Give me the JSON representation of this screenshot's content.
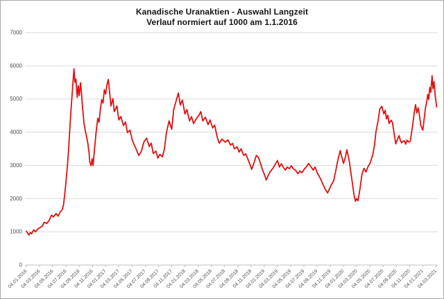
{
  "title": {
    "line1": "Kanadische Uranaktien - Auswahl Langzeit",
    "line2": "Verlauf normiert auf 1000 am 1.1.2016"
  },
  "colors": {
    "series": "#e10e0e",
    "grid": "#d9d9d9",
    "axis": "#bfbfbf",
    "tick_labels": "#4d4d4d",
    "frame_border": "#a6a6a6",
    "background": "#ffffff"
  },
  "chart_data": {
    "type": "line",
    "title": "Kanadische Uranaktien - Auswahl Langzeit",
    "subtitle": "Verlauf normiert auf 1000 am 1.1.2016",
    "legend": "none",
    "grid": "horizontal-only",
    "ylim": [
      0,
      7000
    ],
    "y_ticks": [
      0,
      1000,
      2000,
      3000,
      4000,
      5000,
      6000,
      7000
    ],
    "x_tick_interval_months": 2,
    "x_encoding": "points are [months since 04.01.2016, index value (1000 = 1.1.2016)]",
    "x_tick_labels": [
      "04.01.2016",
      "04.03.2016",
      "04.05.2016",
      "04.07.2016",
      "04.09.2016",
      "04.11.2016",
      "04.01.2017",
      "04.03.2017",
      "04.05.2017",
      "04.07.2017",
      "04.09.2017",
      "04.11.2017",
      "04.01.2018",
      "04.03.2018",
      "04.05.2018",
      "04.07.2018",
      "04.09.2018",
      "04.11.2018",
      "04.01.2019",
      "04.03.2019",
      "04.05.2019",
      "04.07.2019",
      "04.09.2019",
      "04.11.2019",
      "04.01.2020",
      "04.03.2020",
      "04.05.2020",
      "04.07.2020",
      "04.09.2020",
      "04.11.2020",
      "04.01.2021",
      "04.03.2021"
    ],
    "series": [
      {
        "name": "Kanadische Uranaktien (normiert, 1000 am 1.1.2016)",
        "color": "#e10e0e",
        "points": [
          [
            0,
            1020
          ],
          [
            0.2,
            960
          ],
          [
            0.4,
            900
          ],
          [
            0.6,
            980
          ],
          [
            0.8,
            940
          ],
          [
            1.1,
            1060
          ],
          [
            1.4,
            1000
          ],
          [
            1.7,
            1080
          ],
          [
            2,
            1120
          ],
          [
            2.4,
            1170
          ],
          [
            2.7,
            1290
          ],
          [
            3.1,
            1250
          ],
          [
            3.5,
            1360
          ],
          [
            3.8,
            1500
          ],
          [
            4.1,
            1450
          ],
          [
            4.5,
            1550
          ],
          [
            4.8,
            1470
          ],
          [
            5.1,
            1590
          ],
          [
            5.4,
            1660
          ],
          [
            5.6,
            1780
          ],
          [
            5.8,
            2100
          ],
          [
            6,
            2500
          ],
          [
            6.2,
            2950
          ],
          [
            6.4,
            3500
          ],
          [
            6.6,
            4200
          ],
          [
            6.8,
            4800
          ],
          [
            7,
            5350
          ],
          [
            7.2,
            5910
          ],
          [
            7.35,
            5500
          ],
          [
            7.5,
            5600
          ],
          [
            7.7,
            5050
          ],
          [
            7.85,
            5400
          ],
          [
            8,
            5100
          ],
          [
            8.2,
            5490
          ],
          [
            8.35,
            5150
          ],
          [
            8.5,
            4750
          ],
          [
            8.7,
            4300
          ],
          [
            8.9,
            4050
          ],
          [
            9.1,
            3880
          ],
          [
            9.3,
            3670
          ],
          [
            9.5,
            3350
          ],
          [
            9.6,
            3100
          ],
          [
            9.8,
            2990
          ],
          [
            9.95,
            3200
          ],
          [
            10.1,
            3000
          ],
          [
            10.3,
            3460
          ],
          [
            10.5,
            3890
          ],
          [
            10.65,
            4150
          ],
          [
            10.8,
            4420
          ],
          [
            11,
            4300
          ],
          [
            11.2,
            4700
          ],
          [
            11.4,
            4980
          ],
          [
            11.6,
            4880
          ],
          [
            11.8,
            5280
          ],
          [
            12,
            5150
          ],
          [
            12.2,
            5430
          ],
          [
            12.4,
            5590
          ],
          [
            12.6,
            5200
          ],
          [
            12.8,
            4790
          ],
          [
            13.1,
            5010
          ],
          [
            13.3,
            4620
          ],
          [
            13.7,
            4790
          ],
          [
            14,
            4370
          ],
          [
            14.3,
            4470
          ],
          [
            14.7,
            4200
          ],
          [
            15,
            4310
          ],
          [
            15.3,
            3990
          ],
          [
            15.7,
            4060
          ],
          [
            16,
            3780
          ],
          [
            16.3,
            3630
          ],
          [
            16.7,
            3450
          ],
          [
            17,
            3300
          ],
          [
            17.4,
            3420
          ],
          [
            17.8,
            3710
          ],
          [
            18.2,
            3820
          ],
          [
            18.6,
            3570
          ],
          [
            18.9,
            3670
          ],
          [
            19.2,
            3360
          ],
          [
            19.6,
            3430
          ],
          [
            19.9,
            3220
          ],
          [
            20.2,
            3330
          ],
          [
            20.6,
            3260
          ],
          [
            20.9,
            3510
          ],
          [
            21.2,
            3990
          ],
          [
            21.6,
            4340
          ],
          [
            22,
            4090
          ],
          [
            22.3,
            4680
          ],
          [
            22.7,
            4970
          ],
          [
            23,
            5180
          ],
          [
            23.3,
            4820
          ],
          [
            23.6,
            4970
          ],
          [
            24,
            4550
          ],
          [
            24.3,
            4680
          ],
          [
            24.7,
            4340
          ],
          [
            25,
            4470
          ],
          [
            25.3,
            4260
          ],
          [
            25.7,
            4400
          ],
          [
            26.1,
            4510
          ],
          [
            26.4,
            4620
          ],
          [
            26.7,
            4340
          ],
          [
            27.1,
            4450
          ],
          [
            27.5,
            4230
          ],
          [
            27.8,
            4370
          ],
          [
            28.2,
            4130
          ],
          [
            28.5,
            4210
          ],
          [
            28.9,
            3840
          ],
          [
            29.2,
            3670
          ],
          [
            29.6,
            3790
          ],
          [
            30.1,
            3700
          ],
          [
            30.5,
            3770
          ],
          [
            30.9,
            3610
          ],
          [
            31.2,
            3660
          ],
          [
            31.5,
            3500
          ],
          [
            31.9,
            3560
          ],
          [
            32.2,
            3400
          ],
          [
            32.5,
            3500
          ],
          [
            32.9,
            3300
          ],
          [
            33.2,
            3350
          ],
          [
            33.5,
            3200
          ],
          [
            33.8,
            3050
          ],
          [
            34.1,
            2880
          ],
          [
            34.5,
            3110
          ],
          [
            34.8,
            3300
          ],
          [
            35.1,
            3250
          ],
          [
            35.4,
            3080
          ],
          [
            35.7,
            2890
          ],
          [
            36,
            2740
          ],
          [
            36.3,
            2560
          ],
          [
            36.6,
            2700
          ],
          [
            36.9,
            2810
          ],
          [
            37.3,
            2910
          ],
          [
            37.6,
            3010
          ],
          [
            38,
            3150
          ],
          [
            38.3,
            2950
          ],
          [
            38.6,
            3050
          ],
          [
            38.9,
            2940
          ],
          [
            39.2,
            2860
          ],
          [
            39.5,
            2950
          ],
          [
            39.8,
            2900
          ],
          [
            40.1,
            2990
          ],
          [
            40.4,
            2900
          ],
          [
            40.8,
            2840
          ],
          [
            41.1,
            2750
          ],
          [
            41.4,
            2830
          ],
          [
            41.7,
            2780
          ],
          [
            42.1,
            2900
          ],
          [
            42.4,
            2960
          ],
          [
            42.7,
            3060
          ],
          [
            43.1,
            2950
          ],
          [
            43.4,
            2860
          ],
          [
            43.7,
            2950
          ],
          [
            44,
            2780
          ],
          [
            44.3,
            2680
          ],
          [
            44.6,
            2560
          ],
          [
            45,
            2380
          ],
          [
            45.3,
            2260
          ],
          [
            45.6,
            2170
          ],
          [
            45.9,
            2310
          ],
          [
            46.2,
            2430
          ],
          [
            46.5,
            2530
          ],
          [
            46.8,
            2810
          ],
          [
            47.1,
            3120
          ],
          [
            47.5,
            3450
          ],
          [
            47.7,
            3280
          ],
          [
            48,
            3060
          ],
          [
            48.3,
            3260
          ],
          [
            48.5,
            3470
          ],
          [
            48.7,
            3300
          ],
          [
            48.9,
            3100
          ],
          [
            49.1,
            2800
          ],
          [
            49.3,
            2530
          ],
          [
            49.6,
            2100
          ],
          [
            49.8,
            1920
          ],
          [
            50,
            2000
          ],
          [
            50.2,
            1940
          ],
          [
            50.5,
            2310
          ],
          [
            50.8,
            2740
          ],
          [
            51.1,
            2910
          ],
          [
            51.4,
            2800
          ],
          [
            51.7,
            2960
          ],
          [
            52,
            3060
          ],
          [
            52.4,
            3300
          ],
          [
            52.7,
            3620
          ],
          [
            52.9,
            4000
          ],
          [
            53.2,
            4310
          ],
          [
            53.5,
            4700
          ],
          [
            53.8,
            4780
          ],
          [
            54.1,
            4550
          ],
          [
            54.3,
            4660
          ],
          [
            54.5,
            4400
          ],
          [
            54.7,
            4510
          ],
          [
            54.9,
            4260
          ],
          [
            55.2,
            4360
          ],
          [
            55.4,
            4300
          ],
          [
            55.7,
            3910
          ],
          [
            55.9,
            3650
          ],
          [
            56.2,
            3800
          ],
          [
            56.4,
            3900
          ],
          [
            56.6,
            3750
          ],
          [
            56.8,
            3680
          ],
          [
            57,
            3730
          ],
          [
            57.2,
            3740
          ],
          [
            57.4,
            3640
          ],
          [
            57.6,
            3760
          ],
          [
            57.9,
            3700
          ],
          [
            58.1,
            3730
          ],
          [
            58.3,
            4000
          ],
          [
            58.5,
            4260
          ],
          [
            58.7,
            4600
          ],
          [
            58.9,
            4830
          ],
          [
            59.1,
            4580
          ],
          [
            59.3,
            4730
          ],
          [
            59.5,
            4500
          ],
          [
            59.7,
            4200
          ],
          [
            60,
            4060
          ],
          [
            60.2,
            4400
          ],
          [
            60.4,
            4730
          ],
          [
            60.6,
            4930
          ],
          [
            60.75,
            5140
          ],
          [
            60.9,
            4990
          ],
          [
            61.05,
            5350
          ],
          [
            61.2,
            5200
          ],
          [
            61.4,
            5700
          ],
          [
            61.55,
            5310
          ],
          [
            61.7,
            5520
          ],
          [
            61.9,
            5070
          ],
          [
            62.1,
            4760
          ]
        ]
      }
    ]
  }
}
